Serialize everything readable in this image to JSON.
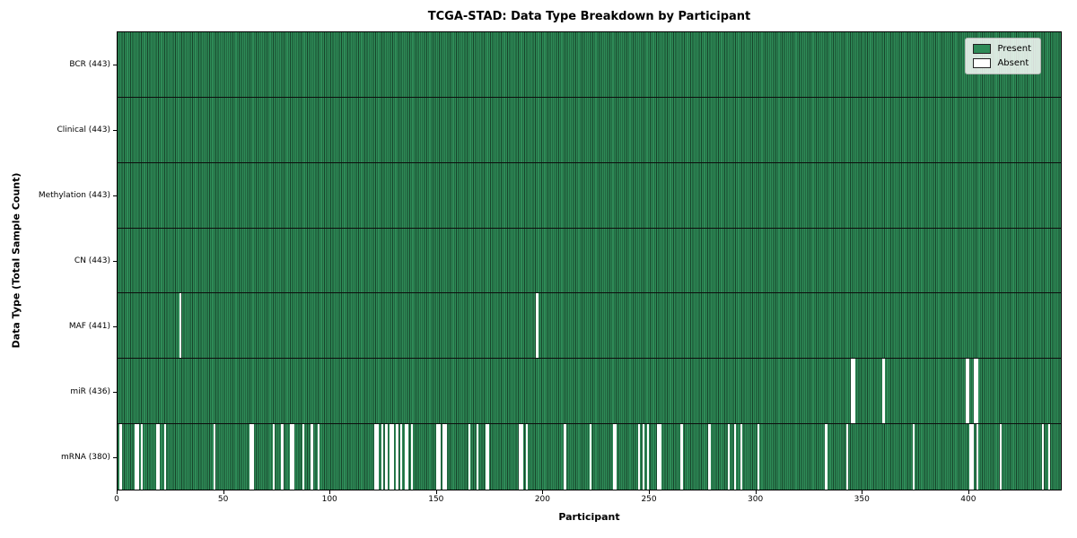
{
  "chart_data": {
    "type": "heatmap",
    "title": "TCGA-STAD: Data Type Breakdown by Participant",
    "xlabel": "Participant",
    "ylabel": "Data Type (Total Sample Count)",
    "x_ticks": [
      0,
      50,
      100,
      150,
      200,
      250,
      300,
      350,
      400
    ],
    "xlim": [
      0,
      443.9
    ],
    "n_participants": 443,
    "grid": false,
    "legend_position": "upper right",
    "legend": [
      {
        "label": "Present",
        "color": "#2e8b57"
      },
      {
        "label": "Absent",
        "color": "#ffffff"
      }
    ],
    "colors": {
      "present": "#2e8b57",
      "absent": "#ffffff",
      "bar_edge": "#17452b",
      "row_divider": "#0d0d0d"
    },
    "rows": [
      {
        "label": "BCR (443)",
        "data_type": "BCR",
        "total": 443,
        "absent": []
      },
      {
        "label": "Clinical (443)",
        "data_type": "Clinical",
        "total": 443,
        "absent": []
      },
      {
        "label": "Methylation (443)",
        "data_type": "Methylation",
        "total": 443,
        "absent": []
      },
      {
        "label": "CN (443)",
        "data_type": "CN",
        "total": 443,
        "absent": []
      },
      {
        "label": "MAF (441)",
        "data_type": "MAF",
        "total": 441,
        "absent": [
          29,
          197
        ]
      },
      {
        "label": "miR (436)",
        "data_type": "miR",
        "total": 436,
        "absent": [
          345,
          346,
          360,
          399,
          400,
          403,
          404
        ]
      },
      {
        "label": "mRNA (380)",
        "data_type": "mRNA",
        "total": 380,
        "absent": [
          1,
          8,
          9,
          11,
          18,
          19,
          22,
          45,
          62,
          63,
          73,
          77,
          81,
          82,
          87,
          91,
          94,
          121,
          122,
          124,
          126,
          128,
          129,
          131,
          133,
          135,
          136,
          138,
          150,
          151,
          153,
          154,
          165,
          169,
          173,
          174,
          189,
          190,
          192,
          210,
          222,
          233,
          234,
          245,
          247,
          249,
          254,
          255,
          265,
          278,
          287,
          290,
          293,
          301,
          333,
          343,
          374,
          401,
          402,
          404,
          415,
          435,
          438
        ]
      }
    ]
  }
}
